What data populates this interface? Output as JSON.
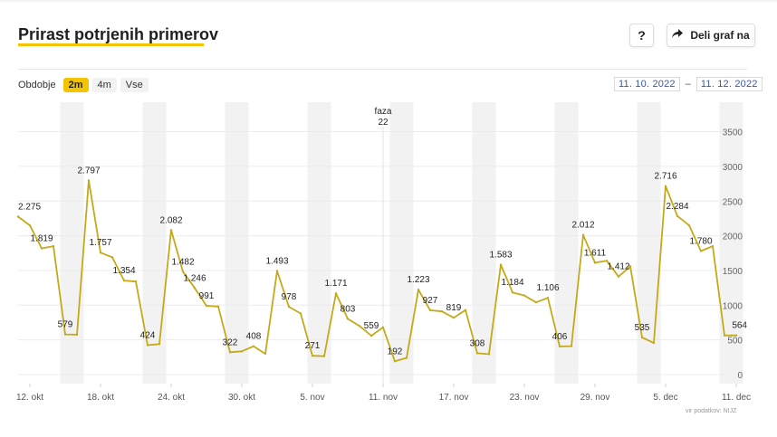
{
  "header": {
    "title": "Prirast potrjenih primerov",
    "help_label": "?",
    "share_label": "Deli graf na"
  },
  "controls": {
    "period_label": "Obdobje",
    "options": [
      "2m",
      "4m",
      "Vse"
    ],
    "selected": "2m",
    "date_from": "11. 10. 2022",
    "date_separator": "–",
    "date_to": "11. 12. 2022"
  },
  "colors": {
    "accent": "#f5c400",
    "line": "#c4aa1a",
    "weekend": "#f2f2f2"
  },
  "chart_data": {
    "type": "line",
    "x_tick_labels": [
      "12. okt",
      "18. okt",
      "24. okt",
      "30. okt",
      "5. nov",
      "11. nov",
      "17. nov",
      "23. nov",
      "29. nov",
      "5. dec",
      "11. dec"
    ],
    "y_ticks": [
      0,
      500,
      1000,
      1500,
      2000,
      2500,
      3000,
      3500
    ],
    "ylim": [
      0,
      3600
    ],
    "y_axis_side": "right",
    "grid": true,
    "annotation": {
      "text_line1": "faza",
      "text_line2": "22",
      "date": "2022-11-11"
    },
    "series": [
      {
        "x": [
          "2022-10-11",
          "2022-10-12",
          "2022-10-13",
          "2022-10-14",
          "2022-10-15",
          "2022-10-16",
          "2022-10-17",
          "2022-10-18",
          "2022-10-19",
          "2022-10-20",
          "2022-10-21",
          "2022-10-22",
          "2022-10-23",
          "2022-10-24",
          "2022-10-25",
          "2022-10-26",
          "2022-10-27",
          "2022-10-28",
          "2022-10-29",
          "2022-10-30",
          "2022-10-31",
          "2022-11-01",
          "2022-11-02",
          "2022-11-03",
          "2022-11-04",
          "2022-11-05",
          "2022-11-06",
          "2022-11-07",
          "2022-11-08",
          "2022-11-09",
          "2022-11-10",
          "2022-11-11",
          "2022-11-12",
          "2022-11-13",
          "2022-11-14",
          "2022-11-15",
          "2022-11-16",
          "2022-11-17",
          "2022-11-18",
          "2022-11-19",
          "2022-11-20",
          "2022-11-21",
          "2022-11-22",
          "2022-11-23",
          "2022-11-24",
          "2022-11-25",
          "2022-11-26",
          "2022-11-27",
          "2022-11-28",
          "2022-11-29",
          "2022-11-30",
          "2022-12-01",
          "2022-12-02",
          "2022-12-03",
          "2022-12-04",
          "2022-12-05",
          "2022-12-06",
          "2022-12-07",
          "2022-12-08",
          "2022-12-09",
          "2022-12-10",
          "2022-12-11"
        ],
        "values": [
          2275,
          2150,
          1819,
          1850,
          579,
          575,
          2797,
          1757,
          1690,
          1354,
          1340,
          424,
          440,
          2082,
          1482,
          1246,
          991,
          980,
          322,
          335,
          408,
          300,
          1493,
          978,
          880,
          271,
          265,
          1171,
          803,
          700,
          559,
          680,
          192,
          240,
          1223,
          927,
          910,
          819,
          930,
          308,
          295,
          1583,
          1184,
          1140,
          1040,
          1106,
          406,
          410,
          2012,
          1611,
          1640,
          1412,
          1560,
          535,
          455,
          2716,
          2284,
          2150,
          1780,
          1850,
          564,
          564
        ],
        "labels": [
          {
            "i": 0,
            "text": "2.275",
            "pos": "above"
          },
          {
            "i": 2,
            "text": "1.819",
            "pos": "above"
          },
          {
            "i": 4,
            "text": "579",
            "pos": "above"
          },
          {
            "i": 6,
            "text": "2.797",
            "pos": "above"
          },
          {
            "i": 7,
            "text": "1.757",
            "pos": "above"
          },
          {
            "i": 9,
            "text": "1.354",
            "pos": "above"
          },
          {
            "i": 11,
            "text": "424",
            "pos": "above"
          },
          {
            "i": 13,
            "text": "2.082",
            "pos": "above"
          },
          {
            "i": 14,
            "text": "1.482",
            "pos": "above"
          },
          {
            "i": 15,
            "text": "1.246",
            "pos": "above"
          },
          {
            "i": 16,
            "text": "991",
            "pos": "above"
          },
          {
            "i": 18,
            "text": "322",
            "pos": "above"
          },
          {
            "i": 20,
            "text": "408",
            "pos": "above"
          },
          {
            "i": 22,
            "text": "1.493",
            "pos": "above"
          },
          {
            "i": 23,
            "text": "978",
            "pos": "above"
          },
          {
            "i": 25,
            "text": "271",
            "pos": "above"
          },
          {
            "i": 27,
            "text": "1.171",
            "pos": "above"
          },
          {
            "i": 28,
            "text": "803",
            "pos": "above"
          },
          {
            "i": 30,
            "text": "559",
            "pos": "above"
          },
          {
            "i": 32,
            "text": "192",
            "pos": "above"
          },
          {
            "i": 34,
            "text": "1.223",
            "pos": "above"
          },
          {
            "i": 35,
            "text": "927",
            "pos": "above"
          },
          {
            "i": 37,
            "text": "819",
            "pos": "above"
          },
          {
            "i": 39,
            "text": "308",
            "pos": "above"
          },
          {
            "i": 41,
            "text": "1.583",
            "pos": "above"
          },
          {
            "i": 42,
            "text": "1.184",
            "pos": "above"
          },
          {
            "i": 45,
            "text": "1.106",
            "pos": "above"
          },
          {
            "i": 46,
            "text": "406",
            "pos": "above"
          },
          {
            "i": 48,
            "text": "2.012",
            "pos": "above"
          },
          {
            "i": 49,
            "text": "1.611",
            "pos": "above"
          },
          {
            "i": 51,
            "text": "1.412",
            "pos": "above"
          },
          {
            "i": 53,
            "text": "535",
            "pos": "above"
          },
          {
            "i": 55,
            "text": "2.716",
            "pos": "above"
          },
          {
            "i": 56,
            "text": "2.284",
            "pos": "above"
          },
          {
            "i": 58,
            "text": "1.780",
            "pos": "above"
          },
          {
            "i": 61,
            "text": "564",
            "pos": "above"
          }
        ]
      }
    ]
  },
  "footer": {
    "credit": "vir podatkov: NIJZ"
  }
}
